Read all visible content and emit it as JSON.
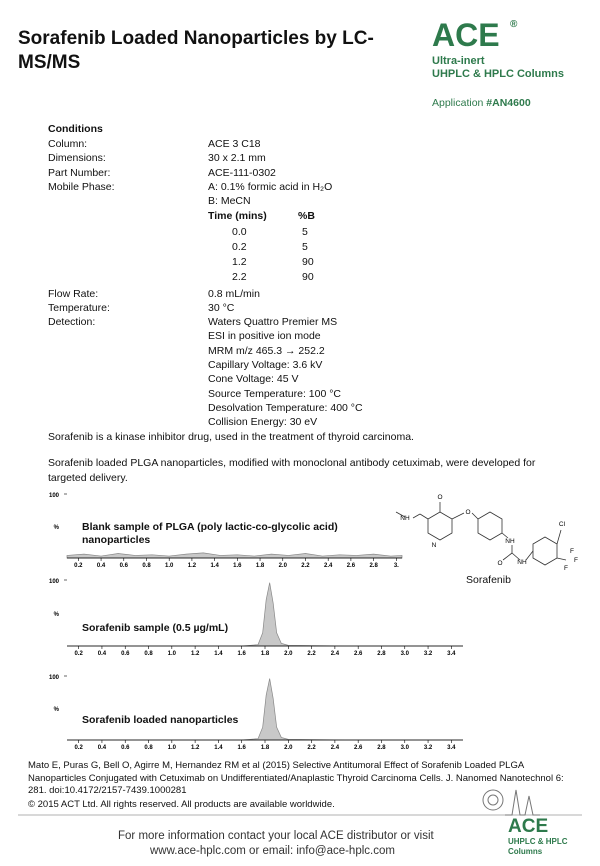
{
  "header": {
    "title": "Sorafenib Loaded Nanoparticles by LC-MS/MS",
    "logo": "ACE",
    "registered": "®",
    "tagline": [
      "Ultra-inert",
      "UHPLC & HPLC Columns"
    ],
    "application_label": "Application",
    "application_id": "#AN4600"
  },
  "conditions": {
    "heading": "Conditions",
    "items": [
      {
        "label": "Column:",
        "values": [
          "ACE 3 C18"
        ]
      },
      {
        "label": "Dimensions:",
        "values": [
          "30 x 2.1 mm"
        ]
      },
      {
        "label": "Part Number:",
        "values": [
          "ACE-111-0302"
        ]
      },
      {
        "label": "Mobile Phase:",
        "values": [
          "A: 0.1% formic acid in H₂O",
          "B: MeCN"
        ]
      }
    ],
    "gradient": {
      "headers": [
        "Time (mins)",
        "%B"
      ],
      "rows": [
        [
          "0.0",
          "5"
        ],
        [
          "0.2",
          "5"
        ],
        [
          "1.2",
          "90"
        ],
        [
          "2.2",
          "90"
        ]
      ]
    },
    "items_after": [
      {
        "label": "Flow Rate:",
        "values": [
          "0.8 mL/min"
        ]
      },
      {
        "label": "Temperature:",
        "values": [
          "30 °C"
        ]
      },
      {
        "label": "Detection:",
        "values": [
          "Waters Quattro Premier MS",
          "ESI in positive ion mode",
          "MRM m/z 465.3 → 252.2",
          "Capillary Voltage: 3.6 kV",
          "Cone Voltage: 45 V",
          "Source Temperature: 100 °C",
          "Desolvation Temperature: 400 °C",
          "Collision Energy: 30 eV"
        ]
      }
    ]
  },
  "paragraphs": [
    "Sorafenib is a kinase inhibitor drug, used in the treatment of thyroid carcinoma.",
    "Sorafenib loaded PLGA nanoparticles, modified with monoclonal antibody cetuximab, were developed for targeted delivery."
  ],
  "chromatograms": [
    {
      "type": "area",
      "title": "Blank sample of PLGA (poly lactic-co-glycolic acid) nanoparticles",
      "ylabel": "%",
      "ylim": [
        0,
        100
      ],
      "yticks": [
        100
      ],
      "xlim": [
        0.1,
        3.05
      ],
      "xticks": [
        0.2,
        0.4,
        0.6,
        0.8,
        {
          "value": 1.0,
          "label": "1.0"
        },
        1.2,
        1.4,
        1.6,
        1.8,
        {
          "value": 2.0,
          "label": "2.0"
        },
        2.2,
        2.4,
        2.6,
        2.8,
        {
          "value": 3.0,
          "label": "3."
        }
      ],
      "x": [
        0.1,
        0.25,
        0.4,
        0.55,
        0.7,
        0.85,
        1.0,
        1.15,
        1.3,
        1.45,
        1.6,
        1.75,
        1.9,
        2.05,
        2.2,
        2.35,
        2.5,
        2.65,
        2.8,
        2.95,
        3.05
      ],
      "values": [
        4,
        6,
        3,
        7,
        4,
        5,
        3,
        6,
        8,
        4,
        5,
        3,
        6,
        4,
        7,
        3,
        5,
        4,
        6,
        3,
        4
      ]
    },
    {
      "type": "area",
      "title": "Sorafenib sample (0.5 µg/mL)",
      "ylabel": "%",
      "ylim": [
        0,
        100
      ],
      "yticks": [
        100
      ],
      "xlim": [
        0.1,
        3.5
      ],
      "xticks": [
        0.2,
        0.4,
        0.6,
        0.8,
        {
          "value": 1.0,
          "label": "1.0"
        },
        1.2,
        1.4,
        1.6,
        1.8,
        {
          "value": 2.0,
          "label": "2.0"
        },
        2.2,
        2.4,
        2.6,
        2.8,
        {
          "value": 3.0,
          "label": "3.0"
        },
        3.2,
        3.4
      ],
      "x": [
        0.1,
        1.0,
        1.6,
        1.74,
        1.78,
        1.81,
        1.84,
        1.87,
        1.9,
        1.94,
        2.0,
        2.5,
        3.5
      ],
      "values": [
        0,
        0,
        0,
        2,
        20,
        70,
        96,
        65,
        20,
        4,
        1,
        0,
        0
      ]
    },
    {
      "type": "area",
      "title": "Sorafenib loaded nanoparticles",
      "ylabel": "%",
      "ylim": [
        0,
        100
      ],
      "yticks": [
        100
      ],
      "xlim": [
        0.1,
        3.5
      ],
      "xticks": [
        0.2,
        0.4,
        0.6,
        0.8,
        {
          "value": 1.0,
          "label": "1.0"
        },
        1.2,
        1.4,
        1.6,
        1.8,
        {
          "value": 2.0,
          "label": "2.0"
        },
        2.2,
        2.4,
        2.6,
        2.8,
        {
          "value": 3.0,
          "label": "3.0"
        },
        3.2,
        3.4
      ],
      "x": [
        0.1,
        1.0,
        1.6,
        1.74,
        1.78,
        1.81,
        1.84,
        1.87,
        1.9,
        1.94,
        2.0,
        2.5,
        3.5
      ],
      "values": [
        0,
        0,
        0,
        2,
        20,
        70,
        96,
        65,
        20,
        4,
        1,
        0,
        0
      ]
    }
  ],
  "structure": {
    "name": "Sorafenib",
    "atoms": [
      "O",
      "NH",
      "N",
      "O",
      "NH",
      "O",
      "NH",
      "Cl",
      "F",
      "F",
      "F"
    ]
  },
  "reference": "Mato E, Puras G, Bell O, Agirre M, Hernandez RM et al (2015) Selective Antitumoral Effect of Sorafenib Loaded PLGA Nanoparticles Conjugated with Cetuximab on Undifferentiated/Anaplastic Thyroid Carcinoma Cells. J. Nanomed Nanotechnol 6: 281. doi:10.4172/2157-7439.1000281",
  "copyright": "© 2015 ACT Ltd. All rights reserved. All products are available worldwide.",
  "footer": {
    "contact": [
      "For more information contact your local ACE distributor or visit",
      "www.ace-hplc.com or email: info@ace-hplc.com"
    ],
    "logo": "ACE",
    "tagline": [
      "UHPLC & HPLC",
      "Columns"
    ]
  }
}
